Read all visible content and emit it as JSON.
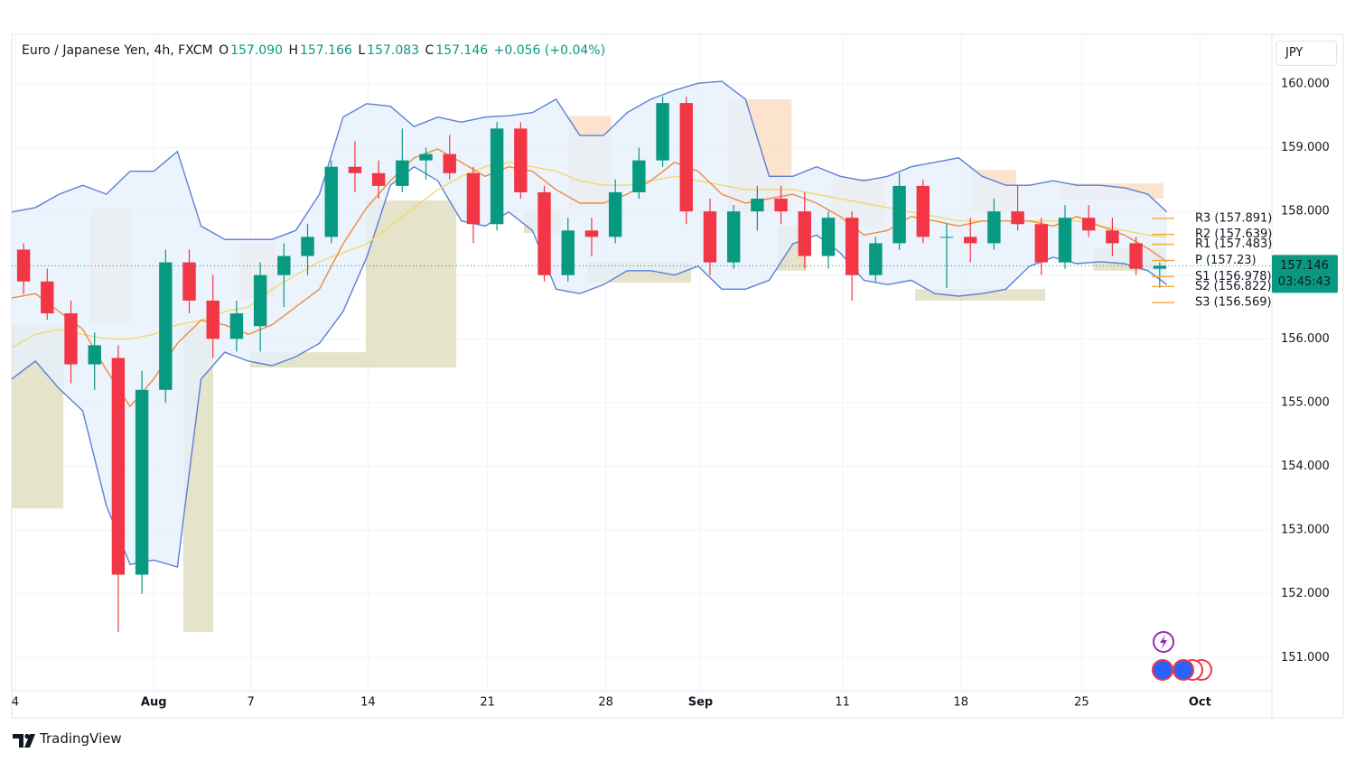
{
  "chart_data": {
    "type": "candlestick",
    "symbol": "Euro / Japanese Yen, 4h, FXCM",
    "ohlc_header": {
      "o_label": "O",
      "open": "157.090",
      "h_label": "H",
      "high": "157.166",
      "l_label": "L",
      "low": "157.083",
      "c_label": "C",
      "close": "157.146",
      "change": "+0.056 (+0.04%)"
    },
    "currency": "JPY",
    "last_price": 157.146,
    "countdown": "03:45:43",
    "brand": "TradingView",
    "up_color": "#089981",
    "down_color": "#f23645",
    "grid": true,
    "xlim": [
      -6,
      47.24
    ],
    "ylim": [
      150.48,
      160.75
    ],
    "xticks": [
      {
        "value": -5.85,
        "label": "4"
      },
      {
        "value": 0,
        "label": "Aug"
      },
      {
        "value": 4.1,
        "label": "7"
      },
      {
        "value": 9.05,
        "label": "14"
      },
      {
        "value": 14.1,
        "label": "21"
      },
      {
        "value": 19.1,
        "label": "28"
      },
      {
        "value": 23.1,
        "label": "Sep"
      },
      {
        "value": 29.1,
        "label": "11"
      },
      {
        "value": 34.1,
        "label": "18"
      },
      {
        "value": 39.2,
        "label": "25"
      },
      {
        "value": 44.2,
        "label": "Oct"
      }
    ],
    "yticks": [
      {
        "value": 151,
        "label": "151.000"
      },
      {
        "value": 152,
        "label": "152.000"
      },
      {
        "value": 153,
        "label": "153.000"
      },
      {
        "value": 154,
        "label": "154.000"
      },
      {
        "value": 155,
        "label": "155.000"
      },
      {
        "value": 156,
        "label": "156.000"
      },
      {
        "value": 157,
        "label": "157.000"
      },
      {
        "value": 158,
        "label": "158.000"
      },
      {
        "value": 159,
        "label": "159.000"
      },
      {
        "value": 160,
        "label": "160.000"
      }
    ],
    "x": [
      -5.5,
      -4.5,
      -3.5,
      -2.5,
      -1.5,
      -0.5,
      0.5,
      1.5,
      2.5,
      3.5,
      4.5,
      5.5,
      6.5,
      7.5,
      8.5,
      9.5,
      10.5,
      11.5,
      12.5,
      13.5,
      14.5,
      15.5,
      16.5,
      17.5,
      18.5,
      19.5,
      20.5,
      21.5,
      22.5,
      23.5,
      24.5,
      25.5,
      26.5,
      27.5,
      28.5,
      29.5,
      30.5,
      31.5,
      32.5,
      33.5,
      34.5,
      35.5,
      36.5,
      37.5,
      38.5,
      39.5,
      40.5,
      41.5,
      42.5
    ],
    "open": [
      157.4,
      156.9,
      156.4,
      155.6,
      155.7,
      152.3,
      155.2,
      157.2,
      156.6,
      156.0,
      156.2,
      157.0,
      157.3,
      157.6,
      158.7,
      158.6,
      158.4,
      158.8,
      158.9,
      158.6,
      157.8,
      159.3,
      158.3,
      157.0,
      157.7,
      157.6,
      158.3,
      158.8,
      159.7,
      158.0,
      157.2,
      158.0,
      158.2,
      158.0,
      157.3,
      157.9,
      157.0,
      157.5,
      158.4,
      157.6,
      157.6,
      157.5,
      158.0,
      157.8,
      157.2,
      157.9,
      157.7,
      157.5,
      157.1
    ],
    "high": [
      157.5,
      157.1,
      156.6,
      156.1,
      155.9,
      155.5,
      157.4,
      157.4,
      157.0,
      156.6,
      157.2,
      157.5,
      157.8,
      158.8,
      159.1,
      158.8,
      159.3,
      159.0,
      159.2,
      158.7,
      159.4,
      159.4,
      158.4,
      157.9,
      157.9,
      158.5,
      159.0,
      159.8,
      159.8,
      158.2,
      158.1,
      158.4,
      158.4,
      158.3,
      158.0,
      158.0,
      157.6,
      158.6,
      158.5,
      157.8,
      157.9,
      158.2,
      158.4,
      157.9,
      158.1,
      158.1,
      157.9,
      157.6,
      157.2
    ],
    "low": [
      156.7,
      156.3,
      155.3,
      155.2,
      151.4,
      152.0,
      155.0,
      156.4,
      155.7,
      155.8,
      155.8,
      156.5,
      157.0,
      157.5,
      158.3,
      158.2,
      158.3,
      158.5,
      158.5,
      157.5,
      157.7,
      158.2,
      156.9,
      156.9,
      157.3,
      157.5,
      158.2,
      158.7,
      157.8,
      157.0,
      157.1,
      157.7,
      157.8,
      157.1,
      157.1,
      156.6,
      156.9,
      157.4,
      157.5,
      156.8,
      157.2,
      157.4,
      157.7,
      157.0,
      157.1,
      157.6,
      157.3,
      157.0,
      156.8
    ],
    "close": [
      156.9,
      156.4,
      155.6,
      155.9,
      152.3,
      155.2,
      157.2,
      156.6,
      156.0,
      156.4,
      157.0,
      157.3,
      157.6,
      158.7,
      158.6,
      158.4,
      158.8,
      158.9,
      158.6,
      157.8,
      159.3,
      158.3,
      157.0,
      157.7,
      157.6,
      158.3,
      158.8,
      159.7,
      158.0,
      157.2,
      158.0,
      158.2,
      158.0,
      157.3,
      157.9,
      157.0,
      157.5,
      158.4,
      157.6,
      157.6,
      157.5,
      158.0,
      157.8,
      157.2,
      157.9,
      157.7,
      157.5,
      157.1,
      157.146
    ],
    "indicator_x": [
      -6,
      -5,
      -4,
      -3,
      -2,
      -1,
      0,
      1,
      2,
      3,
      4,
      5,
      6,
      7,
      8,
      9,
      10,
      11,
      12,
      13,
      14,
      15,
      16,
      17,
      18,
      19,
      20,
      21,
      22,
      23,
      24,
      25,
      26,
      27,
      28,
      29,
      30,
      31,
      32,
      33,
      34,
      35,
      36,
      37,
      38,
      39,
      40,
      41,
      42,
      42.8
    ],
    "bands": {
      "color": "#5b7fd6",
      "fill": "#e6f0fb",
      "upper": [
        157.99,
        158.06,
        158.27,
        158.41,
        158.27,
        158.63,
        158.63,
        158.94,
        157.77,
        157.56,
        157.56,
        157.56,
        157.7,
        158.27,
        159.48,
        159.69,
        159.65,
        159.33,
        159.48,
        159.4,
        159.48,
        159.5,
        159.55,
        159.76,
        159.19,
        159.19,
        159.55,
        159.76,
        159.9,
        160.01,
        160.04,
        159.76,
        158.55,
        158.55,
        158.7,
        158.55,
        158.48,
        158.55,
        158.7,
        158.77,
        158.84,
        158.55,
        158.41,
        158.41,
        158.48,
        158.41,
        158.41,
        158.37,
        158.27,
        157.99
      ],
      "lower": [
        155.37,
        155.65,
        155.22,
        154.87,
        153.38,
        152.46,
        152.53,
        152.42,
        155.37,
        155.79,
        155.65,
        155.58,
        155.72,
        155.93,
        156.43,
        157.28,
        158.41,
        158.7,
        158.48,
        157.85,
        157.77,
        157.99,
        157.7,
        156.78,
        156.71,
        156.85,
        157.07,
        157.07,
        157.0,
        157.14,
        156.78,
        156.78,
        156.92,
        157.49,
        157.63,
        157.35,
        156.92,
        156.85,
        156.92,
        156.71,
        156.67,
        156.71,
        156.78,
        157.14,
        157.28,
        157.18,
        157.21,
        157.18,
        157.07,
        156.85
      ]
    },
    "ma_fast": {
      "color": "#f08a3c",
      "values": [
        156.64,
        156.71,
        156.43,
        156.15,
        155.51,
        154.94,
        155.37,
        155.93,
        156.29,
        156.22,
        156.07,
        156.22,
        156.5,
        156.78,
        157.49,
        158.06,
        158.48,
        158.84,
        158.98,
        158.77,
        158.55,
        158.7,
        158.63,
        158.34,
        158.13,
        158.13,
        158.27,
        158.48,
        158.77,
        158.63,
        158.27,
        158.13,
        158.2,
        158.27,
        158.13,
        157.92,
        157.63,
        157.7,
        157.92,
        157.85,
        157.77,
        157.85,
        157.85,
        157.85,
        157.77,
        157.92,
        157.77,
        157.63,
        157.42,
        157.21
      ]
    },
    "ma_slow": {
      "color": "#f5d76e",
      "values": [
        155.86,
        156.07,
        156.15,
        156.07,
        156.0,
        156.0,
        156.07,
        156.22,
        156.29,
        156.43,
        156.5,
        156.78,
        157.0,
        157.21,
        157.35,
        157.49,
        157.77,
        158.06,
        158.34,
        158.55,
        158.7,
        158.77,
        158.7,
        158.63,
        158.48,
        158.41,
        158.41,
        158.48,
        158.55,
        158.48,
        158.41,
        158.34,
        158.34,
        158.34,
        158.27,
        158.2,
        158.13,
        158.06,
        157.99,
        157.92,
        157.85,
        157.85,
        157.85,
        157.85,
        157.85,
        157.85,
        157.77,
        157.7,
        157.63,
        157.6
      ]
    },
    "zones": [
      {
        "x": [
          -2.68,
          -0.96
        ],
        "y": [
          156.26,
          158.03
        ],
        "color": "#fbd9bd"
      },
      {
        "x": [
          3.62,
          5.15
        ],
        "y": [
          156.64,
          157.49
        ],
        "color": "#fbd9bd"
      },
      {
        "x": [
          17.55,
          19.31
        ],
        "y": [
          158.06,
          159.5
        ],
        "color": "#fbd9bd"
      },
      {
        "x": [
          24.27,
          26.94
        ],
        "y": [
          157.99,
          159.76
        ],
        "color": "#fbd9bd"
      },
      {
        "x": [
          28.62,
          30.91
        ],
        "y": [
          157.77,
          158.51
        ],
        "color": "#fbd9bd"
      },
      {
        "x": [
          34.53,
          36.44
        ],
        "y": [
          157.99,
          158.65
        ],
        "color": "#fbd9bd"
      },
      {
        "x": [
          38.35,
          42.66
        ],
        "y": [
          158.2,
          158.44
        ],
        "color": "#fbd9bd"
      },
      {
        "x": [
          -6,
          -3.82
        ],
        "y": [
          153.34,
          156.22
        ],
        "color": "#dcd9b8"
      },
      {
        "x": [
          1.25,
          2.51
        ],
        "y": [
          151.4,
          156.22
        ],
        "color": "#dcd9b8"
      },
      {
        "x": [
          4.08,
          8.96
        ],
        "y": [
          155.55,
          155.79
        ],
        "color": "#dcd9b8"
      },
      {
        "x": [
          8.96,
          12.78
        ],
        "y": [
          155.55,
          158.17
        ],
        "color": "#dcd9b8"
      },
      {
        "x": [
          15.64,
          17.17
        ],
        "y": [
          157.66,
          157.99
        ],
        "color": "#dcd9b8"
      },
      {
        "x": [
          18.31,
          22.7
        ],
        "y": [
          156.88,
          157.21
        ],
        "color": "#dcd9b8"
      },
      {
        "x": [
          26.33,
          27.59
        ],
        "y": [
          157.07,
          157.77
        ],
        "color": "#dcd9b8"
      },
      {
        "x": [
          32.17,
          37.66
        ],
        "y": [
          156.6,
          156.78
        ],
        "color": "#dcd9b8"
      },
      {
        "x": [
          39.69,
          42.74
        ],
        "y": [
          157.07,
          157.42
        ],
        "color": "#dcd9b8"
      }
    ],
    "pivot_color": "#f2a93b",
    "pivots": [
      {
        "value": 157.891,
        "label": "R3 (157.891)"
      },
      {
        "value": 157.639,
        "label": "R2 (157.639)"
      },
      {
        "value": 157.483,
        "label": "R1 (157.483)"
      },
      {
        "value": 157.23,
        "label": "P (157.23)"
      },
      {
        "value": 156.978,
        "label": "S1 (156.978)"
      },
      {
        "value": 156.822,
        "label": "S2 (156.822)"
      },
      {
        "value": 156.569,
        "label": "S3 (156.569)"
      }
    ]
  }
}
